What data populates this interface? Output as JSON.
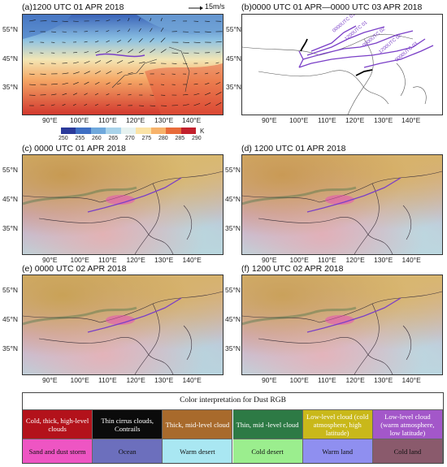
{
  "panels": {
    "a": {
      "title": "(a)1200 UTC 01 APR 2018",
      "vector_key": "15m/s"
    },
    "b": {
      "title": "(b)0000 UTC 01 APR—0000 UTC 03 APR 2018"
    },
    "c": {
      "title": "(c) 0000 UTC 01 APR 2018"
    },
    "d": {
      "title": "(d) 1200 UTC 01 APR 2018"
    },
    "e": {
      "title": "(e) 0000 UTC 02 APR 2018"
    },
    "f": {
      "title": "(f) 1200 UTC 02 APR 2018"
    }
  },
  "axes": {
    "lat_a": [
      "55°N",
      "45°N",
      "35°N"
    ],
    "lon_a": [
      "90°E",
      "100°E",
      "110°E",
      "120°E",
      "130°E",
      "140°E"
    ],
    "lat_b": [
      "55°N",
      "45°N",
      "35°N"
    ],
    "lon_b": [
      "90°E",
      "100°E",
      "110°E",
      "120°E",
      "130°E",
      "140°E"
    ]
  },
  "colorbar": {
    "ticks": [
      "250",
      "255",
      "260",
      "265",
      "270",
      "275",
      "280",
      "285",
      "290"
    ],
    "unit": "K",
    "colors": [
      "#2b3a9a",
      "#3f6fc4",
      "#6fa8dc",
      "#a9d3ea",
      "#e6f2f0",
      "#fbe3a6",
      "#f7b26a",
      "#e86b3a",
      "#c2202c"
    ]
  },
  "trajectory_labels": [
    "0000UTC 01",
    "1200UTC 01",
    "0000UTC 02",
    "1200UTC 02",
    "0000UTC 03"
  ],
  "legend": {
    "title": "Color interpretation for Dust RGB",
    "row1": [
      {
        "label": "Cold, thick, high-level clouds",
        "color": "#b3121b",
        "text": "#ffffff"
      },
      {
        "label": "Thin cirrus clouds, Contrails",
        "color": "#0b0b0b",
        "text": "#ffffff"
      },
      {
        "label": "Thick, mid-level cloud",
        "color": "#a86a2c",
        "text": "#ffffff"
      },
      {
        "label": "Thin, mid -level cloud",
        "color": "#2d7a45",
        "text": "#ffffff"
      },
      {
        "label": "Low-level cloud (cold atmosphere, high latitude)",
        "color": "#c9b81a",
        "text": "#ffffff"
      },
      {
        "label": "Low-level cloud (warm atmosphere, low latitude)",
        "color": "#a357c9",
        "text": "#ffffff"
      }
    ],
    "row2": [
      {
        "label": "Sand and dust storm",
        "color": "#ee55c3",
        "text": "#111111"
      },
      {
        "label": "Ocean",
        "color": "#6c6fbd",
        "text": "#111111"
      },
      {
        "label": "Warm desert",
        "color": "#a9e7f2",
        "text": "#111111"
      },
      {
        "label": "Cold desert",
        "color": "#9bee8e",
        "text": "#111111"
      },
      {
        "label": "Warm land",
        "color": "#8f8ff0",
        "text": "#111111"
      },
      {
        "label": "Cold land",
        "color": "#8a5a6c",
        "text": "#111111"
      }
    ]
  }
}
